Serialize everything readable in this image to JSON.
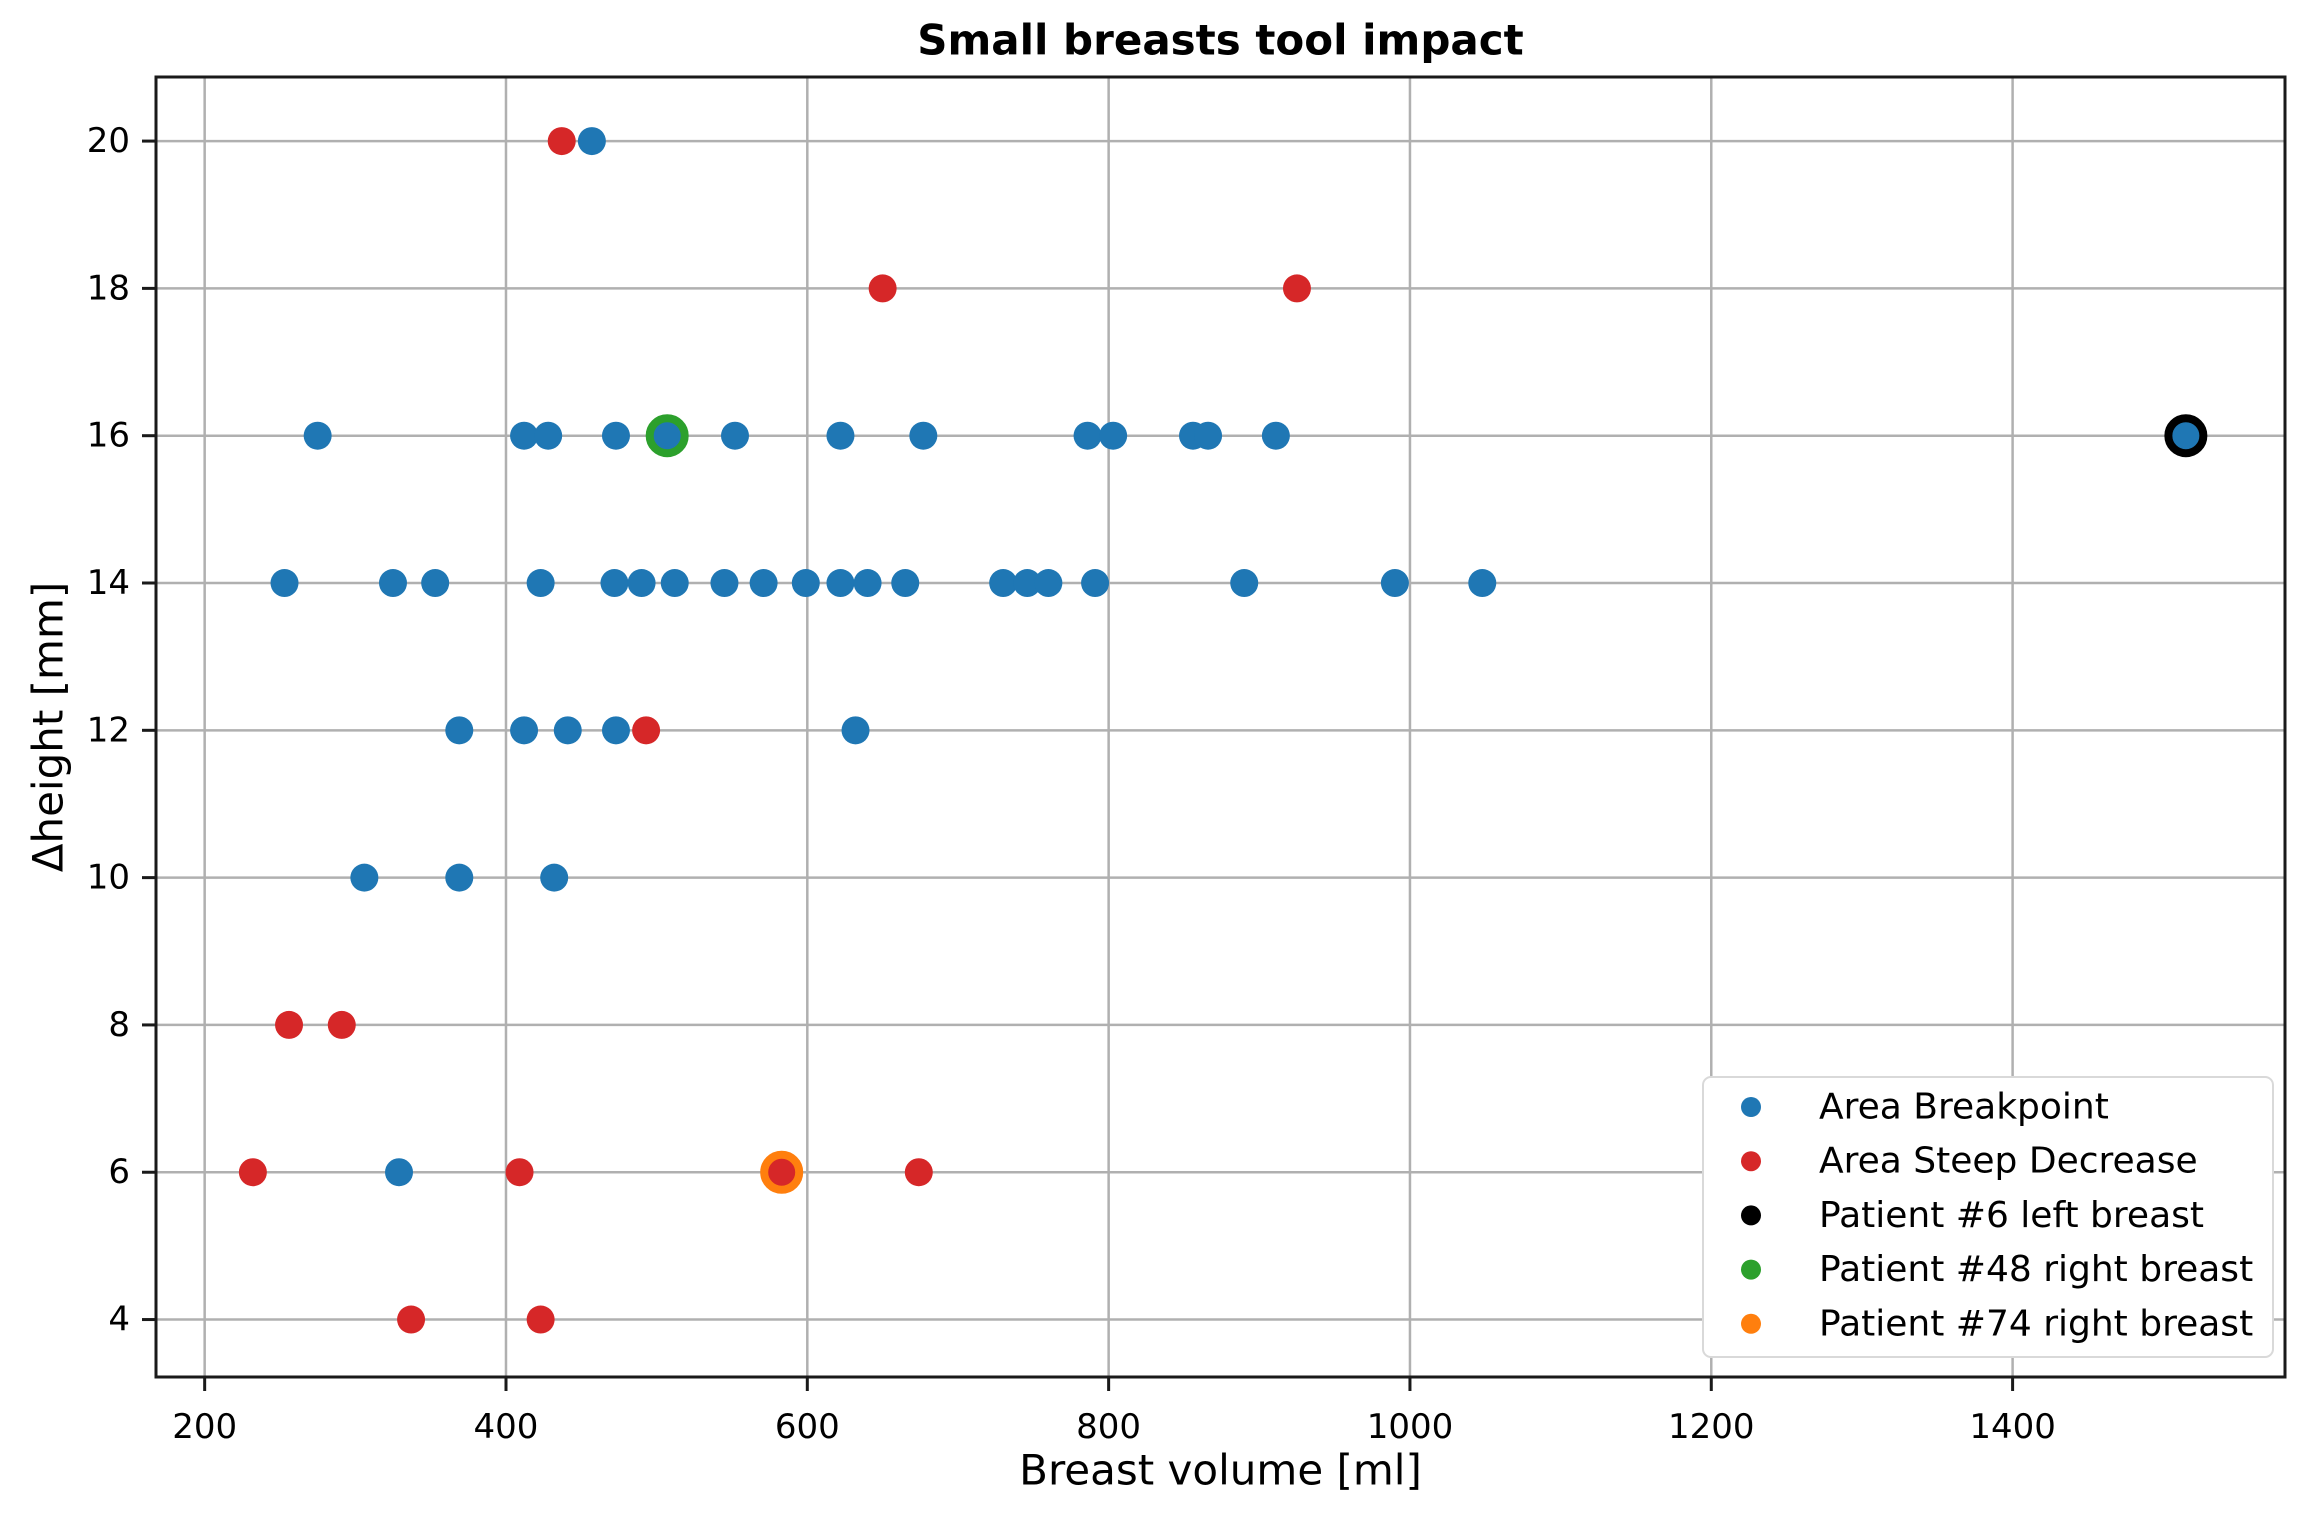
{
  "title": "Small breasts tool impact",
  "axes": {
    "xlabel": "Breast volume [ml]",
    "ylabel": "Δheight [mm]",
    "x_ticks": [
      200,
      400,
      600,
      800,
      1000,
      1200,
      1400
    ],
    "y_ticks": [
      4,
      6,
      8,
      10,
      12,
      14,
      16,
      18,
      20
    ],
    "xlim": [
      167.7,
      1580.8
    ],
    "ylim": [
      3.22,
      20.87
    ],
    "grid": true
  },
  "colors": {
    "blue": "#1f77b4",
    "red": "#d62728",
    "black": "#000000",
    "green": "#2ca02c",
    "orange": "#ff7f0e",
    "grid": "#b0b0b0",
    "spine": "#1a1a1a",
    "legend_border": "#d9d9d9",
    "legend_bg": "#ffffff",
    "text": "#000000"
  },
  "legend": {
    "position": "lower right",
    "entries": [
      {
        "label": "Area Breakpoint",
        "color": "#1f77b4"
      },
      {
        "label": "Area Steep Decrease",
        "color": "#d62728"
      },
      {
        "label": "Patient #6 left breast",
        "color": "#000000"
      },
      {
        "label": "Patient #48 right breast",
        "color": "#2ca02c"
      },
      {
        "label": "Patient #74 right breast",
        "color": "#ff7f0e"
      }
    ]
  },
  "chart_data": {
    "type": "scatter",
    "title": "Small breasts tool impact",
    "xlabel": "Breast volume [ml]",
    "ylabel": "Δheight [mm]",
    "xlim": [
      167.7,
      1580.8
    ],
    "ylim": [
      3.22,
      20.87
    ],
    "grid": true,
    "legend_position": "lower right",
    "series": [
      {
        "name": "Area Breakpoint",
        "color": "#1f77b4",
        "marker": "dot",
        "points": [
          [
            457,
            20
          ],
          [
            275,
            16
          ],
          [
            412,
            16
          ],
          [
            428,
            16
          ],
          [
            473,
            16
          ],
          [
            507,
            16
          ],
          [
            552,
            16
          ],
          [
            622,
            16
          ],
          [
            677,
            16
          ],
          [
            786,
            16
          ],
          [
            803,
            16
          ],
          [
            856,
            16
          ],
          [
            866,
            16
          ],
          [
            911,
            16
          ],
          [
            1515,
            16
          ],
          [
            253,
            14
          ],
          [
            325,
            14
          ],
          [
            353,
            14
          ],
          [
            423,
            14
          ],
          [
            472,
            14
          ],
          [
            490,
            14
          ],
          [
            512,
            14
          ],
          [
            545,
            14
          ],
          [
            571,
            14
          ],
          [
            599,
            14
          ],
          [
            622,
            14
          ],
          [
            640,
            14
          ],
          [
            665,
            14
          ],
          [
            730,
            14
          ],
          [
            746,
            14
          ],
          [
            760,
            14
          ],
          [
            791,
            14
          ],
          [
            890,
            14
          ],
          [
            990,
            14
          ],
          [
            1048,
            14
          ],
          [
            369,
            12
          ],
          [
            412,
            12
          ],
          [
            441,
            12
          ],
          [
            473,
            12
          ],
          [
            632,
            12
          ],
          [
            306,
            10
          ],
          [
            369,
            10
          ],
          [
            432,
            10
          ],
          [
            329,
            6
          ]
        ]
      },
      {
        "name": "Area Steep Decrease",
        "color": "#d62728",
        "marker": "dot",
        "points": [
          [
            437,
            20
          ],
          [
            650,
            18
          ],
          [
            925,
            18
          ],
          [
            493,
            12
          ],
          [
            256,
            8
          ],
          [
            291,
            8
          ],
          [
            232,
            6
          ],
          [
            409,
            6
          ],
          [
            583,
            6
          ],
          [
            674,
            6
          ],
          [
            337,
            4
          ],
          [
            423,
            4
          ]
        ]
      },
      {
        "name": "Patient #6 left breast",
        "color": "#000000",
        "marker": "ring",
        "points": [
          [
            1515,
            16
          ]
        ]
      },
      {
        "name": "Patient #48 right breast",
        "color": "#2ca02c",
        "marker": "ring",
        "points": [
          [
            507,
            16
          ]
        ]
      },
      {
        "name": "Patient #74 right breast",
        "color": "#ff7f0e",
        "marker": "ring",
        "points": [
          [
            583,
            6
          ]
        ]
      }
    ]
  }
}
